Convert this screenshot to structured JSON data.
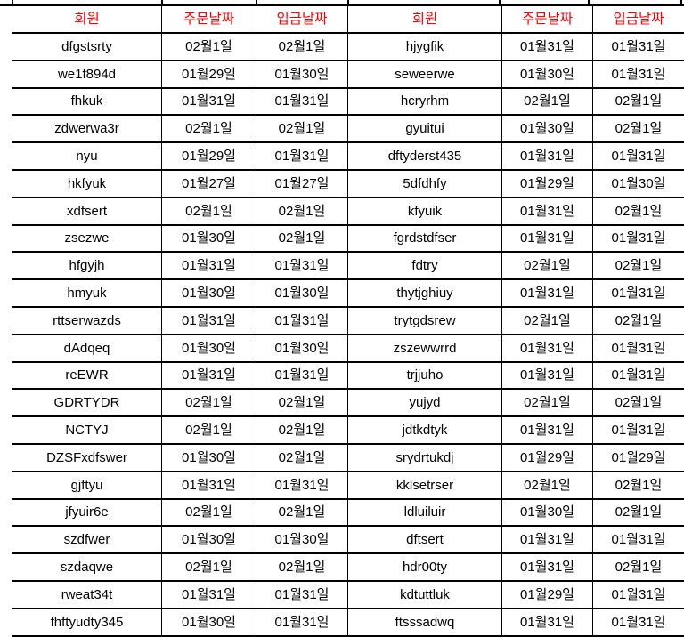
{
  "colors": {
    "header_text": "#ff0000",
    "body_text": "#000000",
    "grid": "#000000",
    "background": "#ffffff"
  },
  "table": {
    "headers": [
      "회원",
      "주문날짜",
      "입금날짜",
      "회원",
      "주문날짜",
      "입금날짜"
    ],
    "column_roles": [
      "member",
      "order-date",
      "deposit-date",
      "member",
      "order-date",
      "deposit-date"
    ],
    "rows": [
      [
        "dfgstsrty",
        "02월1일",
        "02월1일",
        "hjygfik",
        "01월31일",
        "01월31일"
      ],
      [
        "we1f894d",
        "01월29일",
        "01월30일",
        "seweerwe",
        "01월30일",
        "01월31일"
      ],
      [
        "fhkuk",
        "01월31일",
        "01월31일",
        "hcryrhm",
        "02월1일",
        "02월1일"
      ],
      [
        "zdwerwa3r",
        "02월1일",
        "02월1일",
        "gyuitui",
        "01월30일",
        "02월1일"
      ],
      [
        "nyu",
        "01월29일",
        "01월31일",
        "dftyderst435",
        "01월31일",
        "01월31일"
      ],
      [
        "hkfyuk",
        "01월27일",
        "01월27일",
        "5dfdhfy",
        "01월29일",
        "01월30일"
      ],
      [
        "xdfsert",
        "02월1일",
        "02월1일",
        "kfyuik",
        "01월31일",
        "02월1일"
      ],
      [
        "zsezwe",
        "01월30일",
        "02월1일",
        "fgrdstdfser",
        "01월31일",
        "01월31일"
      ],
      [
        "hfgyjh",
        "01월31일",
        "01월31일",
        "fdtry",
        "02월1일",
        "02월1일"
      ],
      [
        "hmyuk",
        "01월30일",
        "01월30일",
        "thytjghiuy",
        "01월31일",
        "01월31일"
      ],
      [
        "rttserwazds",
        "01월31일",
        "01월31일",
        "trytgdsrew",
        "02월1일",
        "02월1일"
      ],
      [
        "dAdqeq",
        "01월30일",
        "01월30일",
        "zszewwrrd",
        "01월31일",
        "01월31일"
      ],
      [
        "reEWR",
        "01월31일",
        "01월31일",
        "trjjuho",
        "01월31일",
        "01월31일"
      ],
      [
        "GDRTYDR",
        "02월1일",
        "02월1일",
        "yujyd",
        "02월1일",
        "02월1일"
      ],
      [
        "NCTYJ",
        "02월1일",
        "02월1일",
        "jdtkdtyk",
        "01월31일",
        "01월31일"
      ],
      [
        "DZSFxdfswer",
        "01월30일",
        "02월1일",
        "srydrtukdj",
        "01월29일",
        "01월29일"
      ],
      [
        "gjftyu",
        "01월31일",
        "01월31일",
        "kklsetrser",
        "02월1일",
        "02월1일"
      ],
      [
        "jfyuir6e",
        "02월1일",
        "02월1일",
        "ldluiluir",
        "01월30일",
        "02월1일"
      ],
      [
        "szdfwer",
        "01월30일",
        "01월30일",
        "dftsert",
        "01월31일",
        "01월31일"
      ],
      [
        "szdaqwe",
        "02월1일",
        "02월1일",
        "hdr00ty",
        "01월31일",
        "02월1일"
      ],
      [
        "rweat34t",
        "01월31일",
        "01월31일",
        "kdtuttluk",
        "01월29일",
        "01월31일"
      ],
      [
        "fhftyudty345",
        "01월30일",
        "01월31일",
        "ftsssadwq",
        "01월31일",
        "01월31일"
      ]
    ]
  }
}
